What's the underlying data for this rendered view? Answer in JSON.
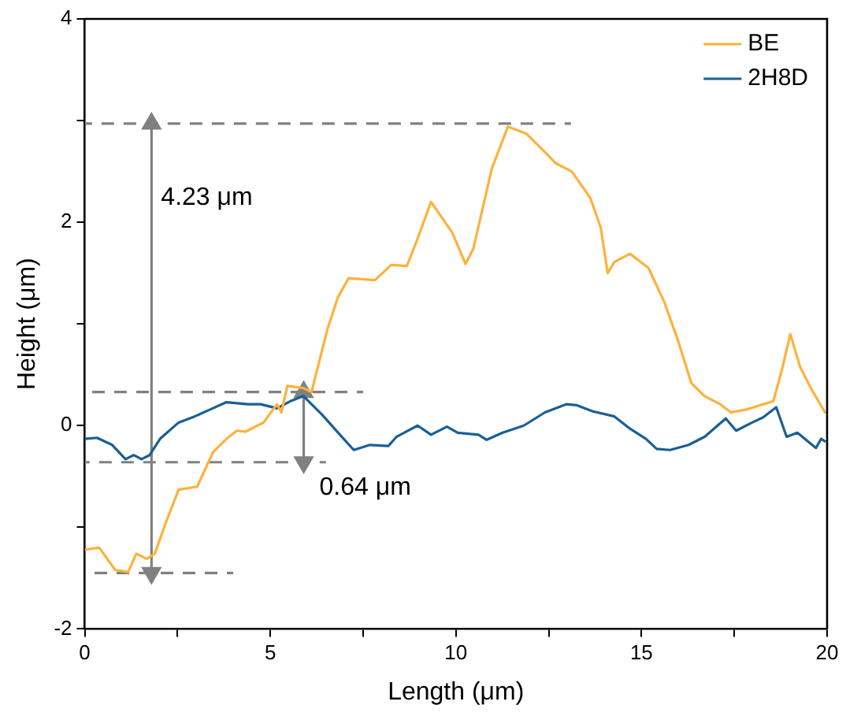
{
  "chart_data": {
    "type": "line",
    "xlabel": "Length (μm)",
    "ylabel": "Height (μm)",
    "xlim": [
      0,
      20
    ],
    "ylim": [
      -2,
      4
    ],
    "xticks": [
      0,
      {
        "value": 2.5,
        "label": null
      },
      5,
      {
        "value": 7.5,
        "label": null
      },
      10,
      {
        "value": 12.5,
        "label": null
      },
      15,
      {
        "value": 17.5,
        "label": null
      },
      20
    ],
    "yticks": [
      -2,
      {
        "value": -1,
        "label": null
      },
      0,
      {
        "value": 1,
        "label": null
      },
      2,
      {
        "value": 3,
        "label": null
      },
      4
    ],
    "grid": false,
    "legend": "top right",
    "marker": "none",
    "line_style": "solid",
    "series": [
      {
        "name": "BE",
        "color": "#ffb13b",
        "x": [
          0,
          0.39,
          0.82,
          1.17,
          1.39,
          1.67,
          1.89,
          2.17,
          2.53,
          3.03,
          3.46,
          3.82,
          4.1,
          4.33,
          4.82,
          5.18,
          5.3,
          5.46,
          5.89,
          6.11,
          6.54,
          6.82,
          7.11,
          7.82,
          8.11,
          8.25,
          8.68,
          8.97,
          9.33,
          9.9,
          10.26,
          10.47,
          10.97,
          11.4,
          11.9,
          12.4,
          12.69,
          13.12,
          13.62,
          13.9,
          14.09,
          14.27,
          14.69,
          15.19,
          15.62,
          15.98,
          16.34,
          16.7,
          17.12,
          17.41,
          17.84,
          18.55,
          18.77,
          19.01,
          19.27,
          19.56,
          19.96
        ],
        "values": [
          -1.22,
          -1.2,
          -1.42,
          -1.44,
          -1.26,
          -1.31,
          -1.26,
          -0.97,
          -0.63,
          -0.6,
          -0.26,
          -0.13,
          -0.05,
          -0.06,
          0.03,
          0.21,
          0.13,
          0.39,
          0.37,
          0.33,
          0.95,
          1.26,
          1.45,
          1.43,
          1.53,
          1.58,
          1.57,
          1.84,
          2.2,
          1.9,
          1.59,
          1.74,
          2.53,
          2.94,
          2.87,
          2.69,
          2.58,
          2.5,
          2.24,
          1.95,
          1.5,
          1.61,
          1.69,
          1.55,
          1.21,
          0.84,
          0.42,
          0.29,
          0.21,
          0.13,
          0.16,
          0.24,
          0.53,
          0.9,
          0.58,
          0.37,
          0.12
        ]
      },
      {
        "name": "2H8D",
        "color": "#1a5f96",
        "x": [
          0,
          0.33,
          0.74,
          1.1,
          1.32,
          1.53,
          1.75,
          2.03,
          2.53,
          2.96,
          3.39,
          3.82,
          4.39,
          4.74,
          5.18,
          5.54,
          5.89,
          6.39,
          6.9,
          7.25,
          7.68,
          8.18,
          8.4,
          8.97,
          9.33,
          9.76,
          10.05,
          10.61,
          10.83,
          11.26,
          11.83,
          12.4,
          12.97,
          13.26,
          13.69,
          14.27,
          14.69,
          15.12,
          15.41,
          15.77,
          16.27,
          16.7,
          17.27,
          17.55,
          17.98,
          18.27,
          18.63,
          18.91,
          19.2,
          19.7,
          19.84,
          19.96
        ],
        "values": [
          -0.13,
          -0.12,
          -0.19,
          -0.33,
          -0.29,
          -0.33,
          -0.29,
          -0.13,
          0.03,
          0.09,
          0.16,
          0.23,
          0.21,
          0.21,
          0.17,
          0.24,
          0.29,
          0.11,
          -0.1,
          -0.24,
          -0.19,
          -0.2,
          -0.11,
          0,
          -0.09,
          -0.01,
          -0.07,
          -0.09,
          -0.14,
          -0.07,
          0,
          0.13,
          0.21,
          0.2,
          0.14,
          0.09,
          -0.03,
          -0.13,
          -0.23,
          -0.24,
          -0.19,
          -0.11,
          0.07,
          -0.05,
          0.03,
          0.08,
          0.18,
          -0.11,
          -0.07,
          -0.22,
          -0.13,
          -0.16
        ]
      },
      {
        "color": "#808080",
        "line_style": "dashed",
        "x": [
          0,
          13.1
        ],
        "values": [
          2.97,
          2.97
        ]
      },
      {
        "color": "#808080",
        "line_style": "dashed",
        "x": [
          0,
          7.5
        ],
        "values": [
          0.33,
          0.33
        ]
      },
      {
        "color": "#808080",
        "line_style": "dashed",
        "x": [
          0,
          6.5
        ],
        "values": [
          -0.36,
          -0.36
        ]
      },
      {
        "color": "#808080",
        "line_style": "dashed",
        "x": [
          0,
          4
        ],
        "values": [
          -1.45,
          -1.45
        ]
      },
      {
        "color": "#808080",
        "marker": "triangle",
        "x": [
          1.8,
          1.8
        ],
        "values": [
          2.97,
          -1.45
        ]
      },
      {
        "color": "#808080",
        "marker": "triangle",
        "x": [
          5.9,
          5.9
        ],
        "values": [
          0.33,
          -0.36
        ]
      }
    ],
    "annotations": [
      {
        "text": "4.23 μm",
        "x": 1.8,
        "y": 2.24
      },
      {
        "text": "0.64 μm",
        "x": 5.9,
        "y": -0.36
      }
    ]
  }
}
